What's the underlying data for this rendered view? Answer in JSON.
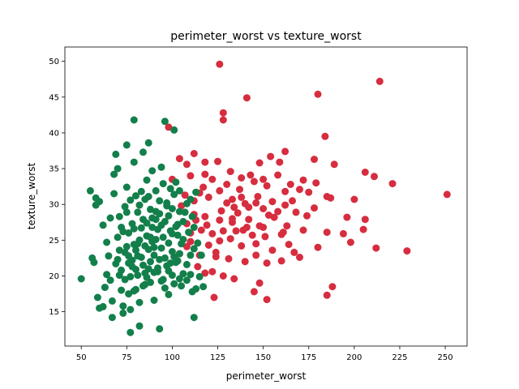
{
  "chart_data": {
    "type": "scatter",
    "title": "perimeter_worst vs texture_worst",
    "xlabel": "perimeter_worst",
    "ylabel": "texture_worst",
    "xlim": [
      41,
      262
    ],
    "ylim": [
      10.2,
      52
    ],
    "x_ticks": [
      50,
      75,
      100,
      125,
      150,
      175,
      200,
      225,
      250
    ],
    "y_ticks": [
      15,
      20,
      25,
      30,
      35,
      40,
      45,
      50
    ],
    "grid": false,
    "legend": "none",
    "series": [
      {
        "color": "#d62d3f",
        "points": [
          [
            126,
            49.6
          ],
          [
            214,
            47.2
          ],
          [
            180,
            45.4
          ],
          [
            141,
            44.9
          ],
          [
            128,
            42.8
          ],
          [
            128,
            41.8
          ],
          [
            184,
            39.5
          ],
          [
            98,
            40.8
          ],
          [
            112,
            37.1
          ],
          [
            154,
            36.7
          ],
          [
            162,
            37.4
          ],
          [
            178,
            36.3
          ],
          [
            104,
            36.4
          ],
          [
            108,
            35.6
          ],
          [
            118,
            35.9
          ],
          [
            125,
            36.0
          ],
          [
            148,
            35.8
          ],
          [
            159,
            35.9
          ],
          [
            189,
            35.6
          ],
          [
            206,
            34.5
          ],
          [
            211,
            33.9
          ],
          [
            221,
            32.9
          ],
          [
            132,
            34.6
          ],
          [
            138,
            33.7
          ],
          [
            143,
            34.1
          ],
          [
            150,
            33.5
          ],
          [
            158,
            34.1
          ],
          [
            172,
            33.4
          ],
          [
            179,
            33.0
          ],
          [
            100,
            33.5
          ],
          [
            110,
            34.0
          ],
          [
            118,
            34.2
          ],
          [
            122,
            33.5
          ],
          [
            130,
            32.8
          ],
          [
            137,
            32.1
          ],
          [
            145,
            33.2
          ],
          [
            152,
            32.6
          ],
          [
            165,
            32.8
          ],
          [
            170,
            32.1
          ],
          [
            175,
            31.7
          ],
          [
            185,
            31.1
          ],
          [
            251,
            31.4
          ],
          [
            107,
            31.3
          ],
          [
            115,
            31.6
          ],
          [
            120,
            31.0
          ],
          [
            133,
            30.7
          ],
          [
            140,
            30.1
          ],
          [
            147,
            31.1
          ],
          [
            155,
            30.4
          ],
          [
            162,
            29.9
          ],
          [
            168,
            28.9
          ],
          [
            178,
            29.5
          ],
          [
            187,
            30.9
          ],
          [
            200,
            30.7
          ],
          [
            105,
            29.8
          ],
          [
            112,
            28.6
          ],
          [
            118,
            28.3
          ],
          [
            126,
            27.8
          ],
          [
            133,
            27.5
          ],
          [
            141,
            26.8
          ],
          [
            148,
            27.0
          ],
          [
            156,
            28.2
          ],
          [
            163,
            27.0
          ],
          [
            174,
            28.4
          ],
          [
            196,
            28.2
          ],
          [
            206,
            27.9
          ],
          [
            108,
            27.3
          ],
          [
            116,
            26.4
          ],
          [
            122,
            25.9
          ],
          [
            128,
            26.3
          ],
          [
            135,
            26.3
          ],
          [
            144,
            25.7
          ],
          [
            151,
            25.5
          ],
          [
            160,
            25.8
          ],
          [
            172,
            26.4
          ],
          [
            185,
            26.1
          ],
          [
            194,
            25.9
          ],
          [
            205,
            26.5
          ],
          [
            110,
            24.8
          ],
          [
            120,
            24.3
          ],
          [
            126,
            24.9
          ],
          [
            132,
            25.2
          ],
          [
            138,
            24.2
          ],
          [
            146,
            24.5
          ],
          [
            155,
            23.6
          ],
          [
            167,
            23.3
          ],
          [
            180,
            24.0
          ],
          [
            198,
            24.7
          ],
          [
            212,
            23.9
          ],
          [
            229,
            23.5
          ],
          [
            104,
            23.1
          ],
          [
            115,
            22.9
          ],
          [
            124,
            22.7
          ],
          [
            131,
            22.4
          ],
          [
            140,
            22.0
          ],
          [
            146,
            22.9
          ],
          [
            152,
            21.8
          ],
          [
            122,
            20.6
          ],
          [
            128,
            20.0
          ],
          [
            134,
            19.6
          ],
          [
            148,
            19.0
          ],
          [
            145,
            17.8
          ],
          [
            152,
            16.7
          ],
          [
            123,
            17.0
          ],
          [
            185,
            17.3
          ],
          [
            188,
            18.5
          ],
          [
            114,
            21.3
          ],
          [
            118,
            20.4
          ],
          [
            160,
            22.1
          ],
          [
            170,
            22.6
          ],
          [
            136,
            28.8
          ],
          [
            142,
            29.6
          ],
          [
            150,
            29.4
          ],
          [
            158,
            29.0
          ],
          [
            166,
            30.5
          ],
          [
            130,
            30.2
          ],
          [
            138,
            31.0
          ],
          [
            127,
            29.1
          ],
          [
            112,
            30.5
          ],
          [
            117,
            32.4
          ],
          [
            162,
            31.8
          ],
          [
            142,
            27.9
          ],
          [
            150,
            26.8
          ],
          [
            119,
            27.1
          ],
          [
            126,
            31.9
          ],
          [
            134,
            29.6
          ],
          [
            153,
            28.5
          ],
          [
            110,
            26.0
          ],
          [
            113,
            27.8
          ],
          [
            146,
            30.2
          ],
          [
            133,
            28.0
          ],
          [
            139,
            26.4
          ],
          [
            161,
            26.1
          ],
          [
            164,
            24.4
          ],
          [
            124,
            23.3
          ],
          [
            108,
            24.1
          ]
        ]
      },
      {
        "color": "#137f4b",
        "points": [
          [
            50,
            19.6
          ],
          [
            55,
            31.9
          ],
          [
            56,
            22.5
          ],
          [
            57,
            21.9
          ],
          [
            58,
            30.9
          ],
          [
            58,
            29.9
          ],
          [
            60,
            30.4
          ],
          [
            59,
            17.0
          ],
          [
            60,
            15.5
          ],
          [
            62,
            15.7
          ],
          [
            62,
            27.1
          ],
          [
            63,
            18.4
          ],
          [
            64,
            24.7
          ],
          [
            64,
            20.2
          ],
          [
            65,
            22.8
          ],
          [
            66,
            28.1
          ],
          [
            66,
            19.4
          ],
          [
            67,
            16.5
          ],
          [
            67,
            14.2
          ],
          [
            68,
            31.5
          ],
          [
            68,
            34.2
          ],
          [
            69,
            37.0
          ],
          [
            70,
            35.0
          ],
          [
            70,
            25.4
          ],
          [
            71,
            23.6
          ],
          [
            71,
            20.1
          ],
          [
            72,
            18.0
          ],
          [
            72,
            26.8
          ],
          [
            73,
            15.8
          ],
          [
            73,
            14.8
          ],
          [
            74,
            29.7
          ],
          [
            75,
            38.3
          ],
          [
            75,
            32.4
          ],
          [
            75,
            24.1
          ],
          [
            76,
            21.8
          ],
          [
            76,
            17.5
          ],
          [
            77,
            15.3
          ],
          [
            77,
            12.1
          ],
          [
            78,
            27.3
          ],
          [
            78,
            22.2
          ],
          [
            79,
            41.8
          ],
          [
            79,
            35.9
          ],
          [
            79,
            26.6
          ],
          [
            80,
            20.9
          ],
          [
            80,
            18.1
          ],
          [
            81,
            28.9
          ],
          [
            81,
            24.5
          ],
          [
            82,
            16.3
          ],
          [
            82,
            13.0
          ],
          [
            83,
            31.8
          ],
          [
            83,
            22.6
          ],
          [
            84,
            37.3
          ],
          [
            84,
            27.9
          ],
          [
            85,
            20.4
          ],
          [
            85,
            18.8
          ],
          [
            86,
            33.4
          ],
          [
            86,
            25.6
          ],
          [
            87,
            38.6
          ],
          [
            87,
            23.7
          ],
          [
            88,
            29.3
          ],
          [
            88,
            19.1
          ],
          [
            89,
            34.7
          ],
          [
            89,
            26.8
          ],
          [
            90,
            22.9
          ],
          [
            90,
            16.6
          ],
          [
            91,
            31.9
          ],
          [
            91,
            25.1
          ],
          [
            92,
            20.6
          ],
          [
            93,
            28.7
          ],
          [
            93,
            12.6
          ],
          [
            94,
            35.2
          ],
          [
            94,
            23.9
          ],
          [
            95,
            19.5
          ],
          [
            96,
            41.6
          ],
          [
            96,
            27.6
          ],
          [
            97,
            30.2
          ],
          [
            98,
            24.6
          ],
          [
            98,
            17.4
          ],
          [
            99,
            21.8
          ],
          [
            100,
            29.4
          ],
          [
            100,
            25.9
          ],
          [
            101,
            40.4
          ],
          [
            101,
            18.9
          ],
          [
            102,
            33.1
          ],
          [
            103,
            27.2
          ],
          [
            103,
            22.1
          ],
          [
            104,
            31.9
          ],
          [
            105,
            24.5
          ],
          [
            106,
            20.3
          ],
          [
            107,
            28.9
          ],
          [
            108,
            19.4
          ],
          [
            109,
            26.1
          ],
          [
            110,
            30.7
          ],
          [
            110,
            22.9
          ],
          [
            111,
            17.8
          ],
          [
            112,
            14.2
          ],
          [
            112,
            26.8
          ],
          [
            113,
            31.7
          ],
          [
            113,
            18.2
          ],
          [
            114,
            24.6
          ],
          [
            115,
            19.9
          ],
          [
            116,
            22.9
          ],
          [
            117,
            18.5
          ],
          [
            76,
            22.8
          ],
          [
            78,
            21.3
          ],
          [
            80,
            23.6
          ],
          [
            82,
            25.0
          ],
          [
            84,
            21.5
          ],
          [
            86,
            19.8
          ],
          [
            88,
            22.0
          ],
          [
            90,
            24.0
          ],
          [
            92,
            21.1
          ],
          [
            94,
            19.3
          ],
          [
            96,
            22.5
          ],
          [
            98,
            20.7
          ],
          [
            100,
            23.4
          ],
          [
            102,
            21.9
          ],
          [
            104,
            19.6
          ],
          [
            74,
            19.5
          ],
          [
            76,
            26.0
          ],
          [
            79,
            24.4
          ],
          [
            81,
            20.1
          ],
          [
            83,
            26.7
          ],
          [
            85,
            24.2
          ],
          [
            87,
            21.0
          ],
          [
            89,
            24.8
          ],
          [
            91,
            27.9
          ],
          [
            93,
            22.3
          ],
          [
            95,
            25.4
          ],
          [
            97,
            21.4
          ],
          [
            99,
            26.3
          ],
          [
            101,
            22.7
          ],
          [
            103,
            25.7
          ],
          [
            105,
            18.6
          ],
          [
            70,
            22.3
          ],
          [
            72,
            20.8
          ],
          [
            74,
            23.3
          ],
          [
            77,
            19.9
          ],
          [
            79,
            17.9
          ],
          [
            81,
            22.8
          ],
          [
            84,
            18.6
          ],
          [
            86,
            27.4
          ],
          [
            88,
            25.4
          ],
          [
            90,
            20.5
          ],
          [
            92,
            26.5
          ],
          [
            94,
            27.1
          ],
          [
            96,
            18.3
          ],
          [
            98,
            28.4
          ],
          [
            100,
            20.1
          ],
          [
            102,
            26.9
          ],
          [
            104,
            23.1
          ],
          [
            106,
            25.1
          ],
          [
            108,
            21.6
          ],
          [
            110,
            20.2
          ],
          [
            112,
            23.8
          ],
          [
            69,
            21.7
          ],
          [
            71,
            28.3
          ],
          [
            73,
            26.2
          ],
          [
            75,
            28.9
          ],
          [
            77,
            30.6
          ],
          [
            80,
            31.2
          ],
          [
            82,
            29.9
          ],
          [
            85,
            30.7
          ],
          [
            87,
            31.1
          ],
          [
            89,
            28.1
          ],
          [
            91,
            29.0
          ],
          [
            93,
            30.5
          ],
          [
            95,
            32.9
          ],
          [
            97,
            29.8
          ],
          [
            99,
            32.2
          ],
          [
            101,
            31.4
          ],
          [
            104,
            29.0
          ],
          [
            106,
            27.6
          ],
          [
            108,
            30.1
          ],
          [
            111,
            28.3
          ]
        ]
      }
    ]
  }
}
